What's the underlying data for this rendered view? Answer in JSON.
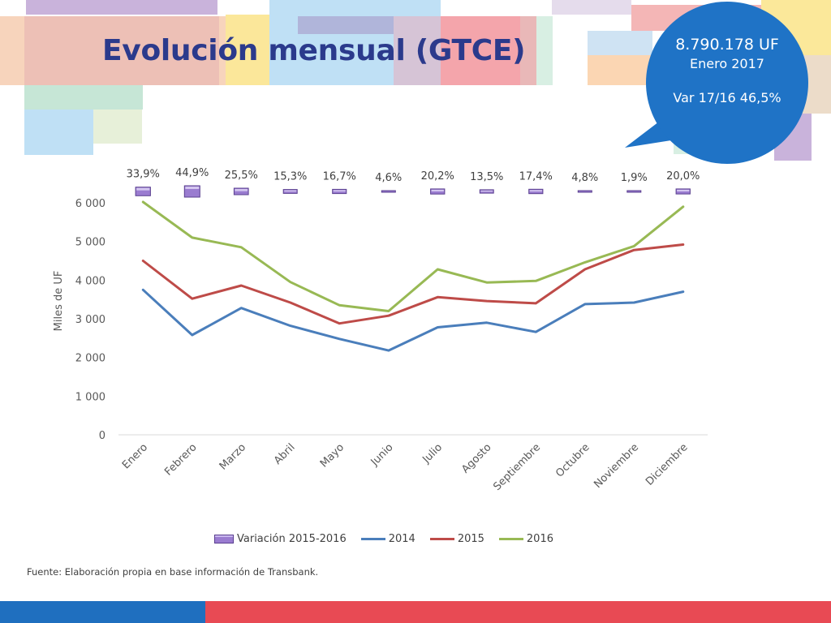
{
  "slide": {
    "title": "Evolución mensual (GTCE)",
    "source": "Fuente: Elaboración propia en base información de Transbank."
  },
  "callout": {
    "value": "8.790.178 UF",
    "period": "Enero 2017",
    "variation": "Var 17/16 46,5%",
    "color": "#1f73c6"
  },
  "colors": {
    "series_2014": "#4a7ebb",
    "series_2015": "#be4b48",
    "series_2016": "#98b954",
    "variation_marker": "#9a7cd0",
    "footer_left": "#1f6fbf",
    "footer_right": "#e84a54",
    "title": "#2b3a8c"
  },
  "chart_data": {
    "type": "line",
    "categories": [
      "Enero",
      "Febrero",
      "Marzo",
      "Abril",
      "Mayo",
      "Junio",
      "Julio",
      "Agosto",
      "Septiembre",
      "Octubre",
      "Noviembre",
      "Diciembre"
    ],
    "ylabel": "Miles de UF",
    "xlabel": "",
    "ylim": [
      0,
      6000
    ],
    "yticks": [
      0,
      1000,
      2000,
      3000,
      4000,
      5000,
      6000
    ],
    "ytick_labels": [
      "0",
      "1 000",
      "2 000",
      "3 000",
      "4 000",
      "5 000",
      "6 000"
    ],
    "grid": false,
    "legend_position": "bottom",
    "series": [
      {
        "name": "2014",
        "color": "#4a7ebb",
        "values": [
          3750,
          2580,
          3280,
          2820,
          2480,
          2180,
          2780,
          2900,
          2660,
          3380,
          3420,
          3700
        ]
      },
      {
        "name": "2015",
        "color": "#be4b48",
        "values": [
          4500,
          3520,
          3860,
          3420,
          2880,
          3080,
          3560,
          3460,
          3400,
          4280,
          4780,
          4920
        ]
      },
      {
        "name": "2016",
        "color": "#98b954",
        "values": [
          6020,
          5100,
          4850,
          3950,
          3350,
          3200,
          4280,
          3940,
          3980,
          4460,
          4880,
          5900
        ]
      }
    ],
    "variation": {
      "name": "Variación 2015-2016",
      "values": [
        33.9,
        44.9,
        25.5,
        15.3,
        16.7,
        4.6,
        20.2,
        13.5,
        17.4,
        4.8,
        1.9,
        20.0
      ],
      "labels": [
        "33,9%",
        "44,9%",
        "25,5%",
        "15,3%",
        "16,7%",
        "4,6%",
        "20,2%",
        "13,5%",
        "17,4%",
        "4,8%",
        "1,9%",
        "20,0%"
      ]
    }
  }
}
